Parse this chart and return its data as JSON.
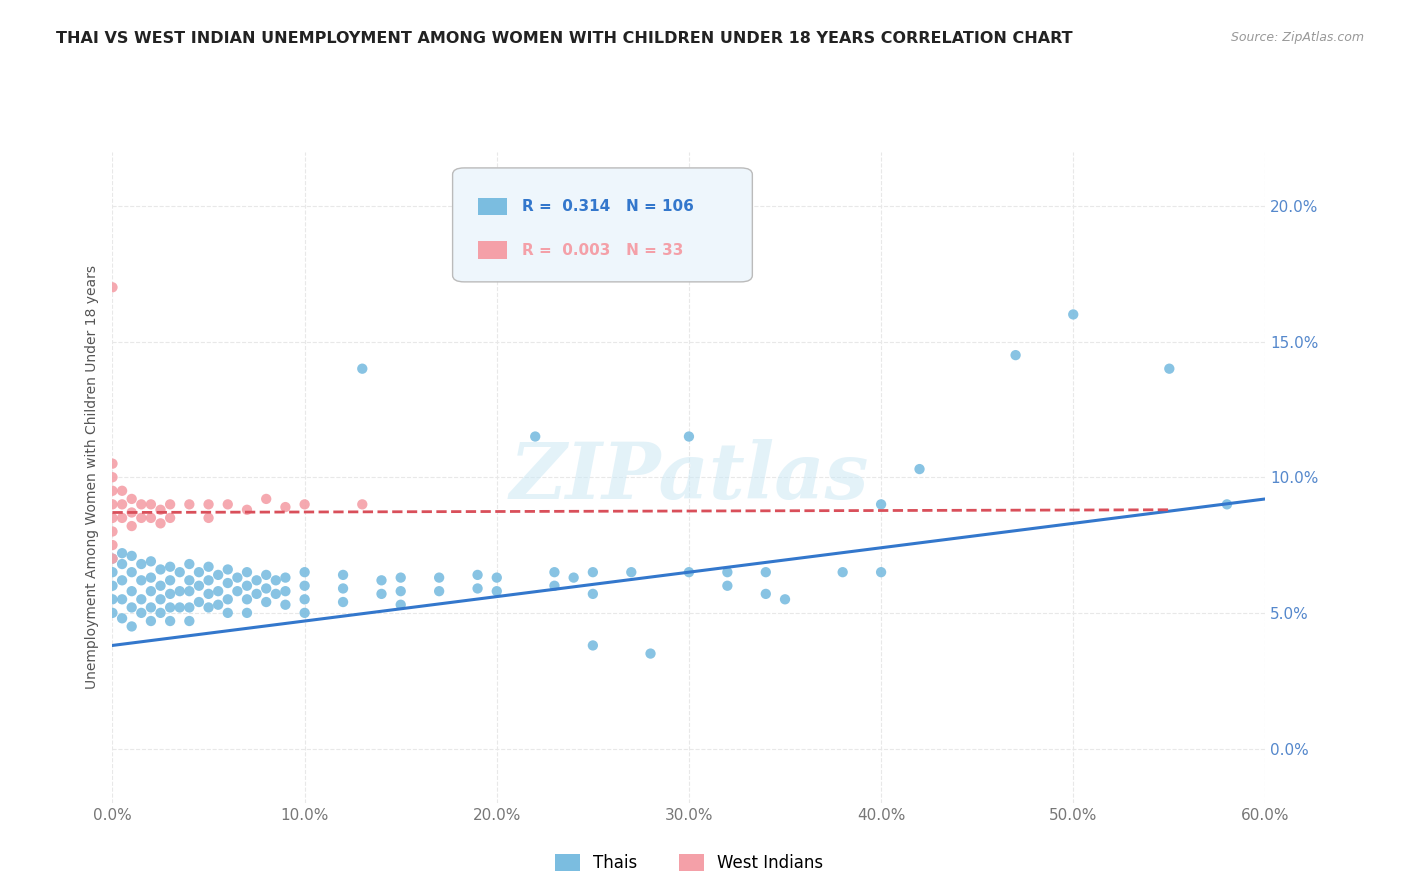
{
  "title": "THAI VS WEST INDIAN UNEMPLOYMENT AMONG WOMEN WITH CHILDREN UNDER 18 YEARS CORRELATION CHART",
  "source": "Source: ZipAtlas.com",
  "ylabel": "Unemployment Among Women with Children Under 18 years",
  "watermark": "ZIPatlas",
  "xlim": [
    0.0,
    0.6
  ],
  "ylim": [
    -0.02,
    0.22
  ],
  "xticks": [
    0.0,
    0.1,
    0.2,
    0.3,
    0.4,
    0.5,
    0.6
  ],
  "xticklabels": [
    "0.0%",
    "10.0%",
    "20.0%",
    "30.0%",
    "40.0%",
    "50.0%",
    "60.0%"
  ],
  "yticks": [
    0.0,
    0.05,
    0.1,
    0.15,
    0.2
  ],
  "yticklabels": [
    "0.0%",
    "5.0%",
    "10.0%",
    "15.0%",
    "20.0%"
  ],
  "thai_R": 0.314,
  "thai_N": 106,
  "west_indian_R": 0.003,
  "west_indian_N": 33,
  "thai_color": "#7bbde0",
  "west_indian_color": "#f4a0a8",
  "thai_line_color": "#3377cc",
  "west_indian_line_color": "#d94f5a",
  "grid_color": "#e8e8e8",
  "grid_style": "--",
  "thai_scatter": [
    [
      0.0,
      0.07
    ],
    [
      0.0,
      0.065
    ],
    [
      0.0,
      0.06
    ],
    [
      0.0,
      0.055
    ],
    [
      0.0,
      0.05
    ],
    [
      0.005,
      0.072
    ],
    [
      0.005,
      0.068
    ],
    [
      0.005,
      0.062
    ],
    [
      0.005,
      0.055
    ],
    [
      0.005,
      0.048
    ],
    [
      0.01,
      0.071
    ],
    [
      0.01,
      0.065
    ],
    [
      0.01,
      0.058
    ],
    [
      0.01,
      0.052
    ],
    [
      0.01,
      0.045
    ],
    [
      0.015,
      0.068
    ],
    [
      0.015,
      0.062
    ],
    [
      0.015,
      0.055
    ],
    [
      0.015,
      0.05
    ],
    [
      0.02,
      0.069
    ],
    [
      0.02,
      0.063
    ],
    [
      0.02,
      0.058
    ],
    [
      0.02,
      0.052
    ],
    [
      0.02,
      0.047
    ],
    [
      0.025,
      0.066
    ],
    [
      0.025,
      0.06
    ],
    [
      0.025,
      0.055
    ],
    [
      0.025,
      0.05
    ],
    [
      0.03,
      0.067
    ],
    [
      0.03,
      0.062
    ],
    [
      0.03,
      0.057
    ],
    [
      0.03,
      0.052
    ],
    [
      0.03,
      0.047
    ],
    [
      0.035,
      0.065
    ],
    [
      0.035,
      0.058
    ],
    [
      0.035,
      0.052
    ],
    [
      0.04,
      0.068
    ],
    [
      0.04,
      0.062
    ],
    [
      0.04,
      0.058
    ],
    [
      0.04,
      0.052
    ],
    [
      0.04,
      0.047
    ],
    [
      0.045,
      0.065
    ],
    [
      0.045,
      0.06
    ],
    [
      0.045,
      0.054
    ],
    [
      0.05,
      0.067
    ],
    [
      0.05,
      0.062
    ],
    [
      0.05,
      0.057
    ],
    [
      0.05,
      0.052
    ],
    [
      0.055,
      0.064
    ],
    [
      0.055,
      0.058
    ],
    [
      0.055,
      0.053
    ],
    [
      0.06,
      0.066
    ],
    [
      0.06,
      0.061
    ],
    [
      0.06,
      0.055
    ],
    [
      0.06,
      0.05
    ],
    [
      0.065,
      0.063
    ],
    [
      0.065,
      0.058
    ],
    [
      0.07,
      0.065
    ],
    [
      0.07,
      0.06
    ],
    [
      0.07,
      0.055
    ],
    [
      0.07,
      0.05
    ],
    [
      0.075,
      0.062
    ],
    [
      0.075,
      0.057
    ],
    [
      0.08,
      0.064
    ],
    [
      0.08,
      0.059
    ],
    [
      0.08,
      0.054
    ],
    [
      0.085,
      0.062
    ],
    [
      0.085,
      0.057
    ],
    [
      0.09,
      0.063
    ],
    [
      0.09,
      0.058
    ],
    [
      0.09,
      0.053
    ],
    [
      0.1,
      0.065
    ],
    [
      0.1,
      0.06
    ],
    [
      0.1,
      0.055
    ],
    [
      0.1,
      0.05
    ],
    [
      0.12,
      0.064
    ],
    [
      0.12,
      0.059
    ],
    [
      0.12,
      0.054
    ],
    [
      0.13,
      0.14
    ],
    [
      0.14,
      0.062
    ],
    [
      0.14,
      0.057
    ],
    [
      0.15,
      0.063
    ],
    [
      0.15,
      0.058
    ],
    [
      0.15,
      0.053
    ],
    [
      0.17,
      0.063
    ],
    [
      0.17,
      0.058
    ],
    [
      0.19,
      0.064
    ],
    [
      0.19,
      0.059
    ],
    [
      0.2,
      0.063
    ],
    [
      0.2,
      0.058
    ],
    [
      0.22,
      0.115
    ],
    [
      0.23,
      0.065
    ],
    [
      0.23,
      0.06
    ],
    [
      0.24,
      0.063
    ],
    [
      0.25,
      0.065
    ],
    [
      0.25,
      0.057
    ],
    [
      0.25,
      0.038
    ],
    [
      0.27,
      0.065
    ],
    [
      0.28,
      0.035
    ],
    [
      0.3,
      0.115
    ],
    [
      0.3,
      0.065
    ],
    [
      0.32,
      0.065
    ],
    [
      0.32,
      0.06
    ],
    [
      0.34,
      0.065
    ],
    [
      0.34,
      0.057
    ],
    [
      0.35,
      0.055
    ],
    [
      0.38,
      0.065
    ],
    [
      0.4,
      0.09
    ],
    [
      0.4,
      0.065
    ],
    [
      0.42,
      0.103
    ],
    [
      0.47,
      0.145
    ],
    [
      0.5,
      0.16
    ],
    [
      0.55,
      0.14
    ],
    [
      0.58,
      0.09
    ]
  ],
  "west_indian_scatter": [
    [
      0.0,
      0.17
    ],
    [
      0.0,
      0.105
    ],
    [
      0.0,
      0.1
    ],
    [
      0.0,
      0.095
    ],
    [
      0.0,
      0.09
    ],
    [
      0.0,
      0.085
    ],
    [
      0.0,
      0.08
    ],
    [
      0.0,
      0.075
    ],
    [
      0.0,
      0.07
    ],
    [
      0.005,
      0.095
    ],
    [
      0.005,
      0.09
    ],
    [
      0.005,
      0.085
    ],
    [
      0.01,
      0.092
    ],
    [
      0.01,
      0.087
    ],
    [
      0.01,
      0.082
    ],
    [
      0.015,
      0.09
    ],
    [
      0.015,
      0.085
    ],
    [
      0.02,
      0.09
    ],
    [
      0.02,
      0.085
    ],
    [
      0.025,
      0.088
    ],
    [
      0.025,
      0.083
    ],
    [
      0.03,
      0.09
    ],
    [
      0.03,
      0.085
    ],
    [
      0.04,
      0.09
    ],
    [
      0.05,
      0.09
    ],
    [
      0.05,
      0.085
    ],
    [
      0.06,
      0.09
    ],
    [
      0.07,
      0.088
    ],
    [
      0.08,
      0.092
    ],
    [
      0.09,
      0.089
    ],
    [
      0.1,
      0.09
    ],
    [
      0.13,
      0.09
    ]
  ],
  "thai_line_x": [
    0.0,
    0.6
  ],
  "thai_line_y": [
    0.038,
    0.092
  ],
  "west_indian_line_x": [
    0.0,
    0.55
  ],
  "west_indian_line_y": [
    0.087,
    0.088
  ]
}
